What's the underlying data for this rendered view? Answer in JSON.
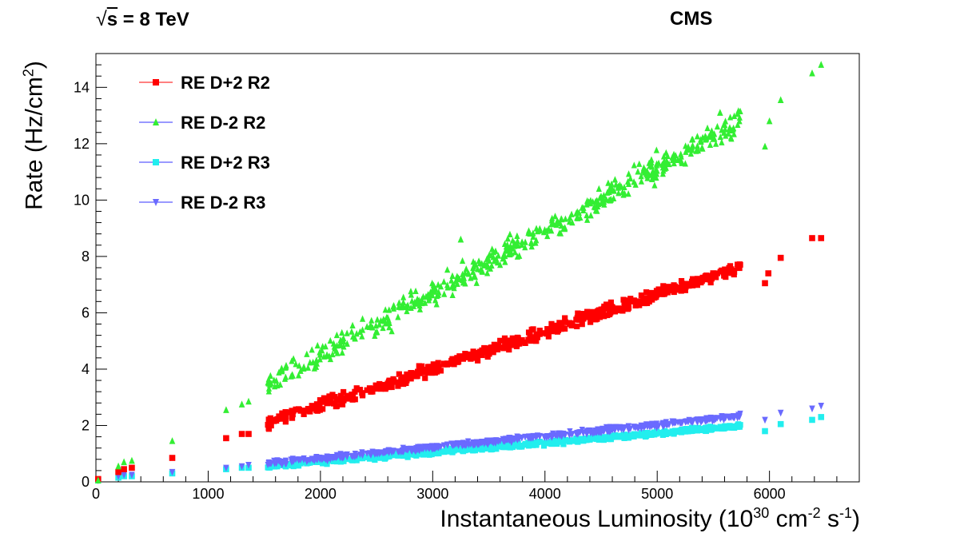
{
  "header": {
    "energy_radical": "√",
    "energy_symbol": "s",
    "energy_value": " = 8 TeV",
    "experiment": "CMS"
  },
  "axes": {
    "x_title_main": "Instantaneous Luminosity (10",
    "x_title_exp1": "30",
    "x_title_mid": " cm",
    "x_title_exp2": "-2",
    "x_title_mid2": " s",
    "x_title_exp3": "-1",
    "x_title_end": ")",
    "y_title_main": "Rate (Hz/cm",
    "y_title_exp": "2",
    "y_title_end": ")"
  },
  "chart_data": {
    "type": "scatter",
    "xlim": [
      0,
      6800
    ],
    "ylim": [
      0,
      15.2
    ],
    "x_ticks": [
      0,
      1000,
      2000,
      3000,
      4000,
      5000,
      6000
    ],
    "y_ticks": [
      0,
      2,
      4,
      6,
      8,
      10,
      12,
      14
    ],
    "grid": false,
    "legend_position": "top-left",
    "series": [
      {
        "name": "RE D+2 R2",
        "color": "#ff0000",
        "marker": "square",
        "slope": 0.00131,
        "intercept": 0.1,
        "noise": 0.32,
        "points": [
          [
            20,
            0.1
          ],
          [
            200,
            0.35
          ],
          [
            250,
            0.45
          ],
          [
            320,
            0.5
          ],
          [
            680,
            0.85
          ],
          [
            1160,
            1.55
          ],
          [
            1300,
            1.7
          ],
          [
            1360,
            1.7
          ],
          [
            6380,
            8.65
          ],
          [
            6460,
            8.65
          ],
          [
            6100,
            7.95
          ],
          [
            5960,
            7.05
          ],
          [
            5990,
            7.4
          ]
        ]
      },
      {
        "name": "RE D-2 R2",
        "color": "#33ee33",
        "marker": "triangle-up",
        "slope": 0.00222,
        "intercept": 0.05,
        "noise": 0.55,
        "points": [
          [
            20,
            0.05
          ],
          [
            200,
            0.55
          ],
          [
            250,
            0.7
          ],
          [
            320,
            0.75
          ],
          [
            680,
            1.45
          ],
          [
            1160,
            2.55
          ],
          [
            1300,
            2.75
          ],
          [
            1360,
            2.85
          ],
          [
            3250,
            8.6
          ],
          [
            6380,
            14.5
          ],
          [
            6460,
            14.8
          ],
          [
            6100,
            13.55
          ],
          [
            5960,
            11.9
          ],
          [
            6000,
            12.8
          ],
          [
            5560,
            13.1
          ]
        ]
      },
      {
        "name": "RE D+2 R3",
        "color": "#22eeee",
        "marker": "square",
        "slope": 0.00034,
        "intercept": 0.03,
        "noise": 0.12,
        "points": [
          [
            20,
            0.05
          ],
          [
            200,
            0.15
          ],
          [
            250,
            0.2
          ],
          [
            320,
            0.2
          ],
          [
            680,
            0.3
          ],
          [
            1160,
            0.45
          ],
          [
            1300,
            0.5
          ],
          [
            1360,
            0.5
          ],
          [
            6380,
            2.2
          ],
          [
            6460,
            2.3
          ],
          [
            6100,
            2.05
          ],
          [
            5960,
            1.8
          ]
        ]
      },
      {
        "name": "RE D-2 R3",
        "color": "#6a6aff",
        "marker": "triangle-down",
        "slope": 0.0004,
        "intercept": 0.03,
        "noise": 0.12,
        "points": [
          [
            20,
            0.05
          ],
          [
            200,
            0.2
          ],
          [
            250,
            0.25
          ],
          [
            320,
            0.25
          ],
          [
            680,
            0.35
          ],
          [
            1160,
            0.5
          ],
          [
            1300,
            0.55
          ],
          [
            1360,
            0.6
          ],
          [
            6380,
            2.6
          ],
          [
            6460,
            2.7
          ],
          [
            6100,
            2.45
          ],
          [
            5960,
            2.2
          ]
        ]
      }
    ]
  }
}
